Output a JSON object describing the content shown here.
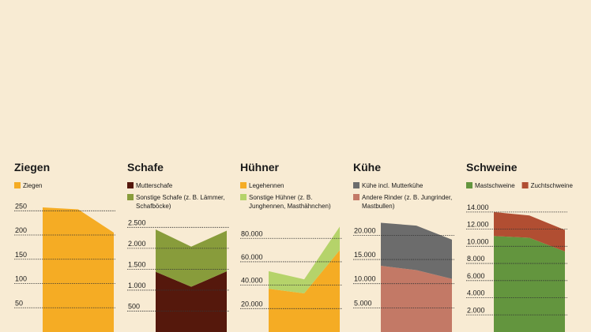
{
  "colors": {
    "background": "#f8ebd3",
    "ziegen": "#f5ac24",
    "mutterschafe": "#55180c",
    "sonstige_schafe": "#889c3b",
    "legehennen": "#f5ac24",
    "sonstige_huehner": "#b5d36a",
    "kuehe": "#6c6c6c",
    "andere_rinder": "#c37966",
    "mastschweine": "#63953e",
    "zuchtschweine": "#b14e32"
  },
  "chart_data": [
    {
      "type": "area",
      "title": "Ziegen",
      "ylim": [
        0,
        270
      ],
      "yticks": [
        50,
        100,
        150,
        200,
        250
      ],
      "ytick_labels": [
        "50",
        "100",
        "150",
        "200",
        "250"
      ],
      "x": [
        0,
        1,
        2
      ],
      "series": [
        {
          "name": "Ziegen",
          "color": "ziegen",
          "values": [
            257,
            253,
            205
          ]
        }
      ]
    },
    {
      "type": "area",
      "title": "Schafe",
      "ylim": [
        0,
        2600
      ],
      "yticks": [
        500,
        1000,
        1500,
        2000,
        2500
      ],
      "ytick_labels": [
        "500",
        "1.000",
        "1.500",
        "2.000",
        "2.500"
      ],
      "x": [
        0,
        1,
        2
      ],
      "series": [
        {
          "name": "Mutterschafe",
          "color": "mutterschafe",
          "values": [
            1440,
            1080,
            1450
          ]
        },
        {
          "name": "Sonstige Schafe (z. B. Lämmer, Schafböcke)",
          "color": "sonstige_schafe",
          "values": [
            1010,
            960,
            970
          ]
        }
      ]
    },
    {
      "type": "area",
      "title": "Hühner",
      "ylim": [
        0,
        95000
      ],
      "yticks": [
        20000,
        40000,
        60000,
        80000
      ],
      "ytick_labels": [
        "20.000",
        "40.000",
        "60.000",
        "80.000"
      ],
      "x": [
        0,
        1,
        2
      ],
      "series": [
        {
          "name": "Legehennen",
          "color": "legehennen",
          "values": [
            37000,
            33000,
            70000
          ]
        },
        {
          "name": "Sonstige Hühner (z. B. Junghennen, Masthähnchen)",
          "color": "sonstige_huehner",
          "values": [
            15000,
            12000,
            20000
          ]
        }
      ]
    },
    {
      "type": "area",
      "title": "Kühe",
      "ylim": [
        0,
        23000
      ],
      "yticks": [
        5000,
        10000,
        15000,
        20000
      ],
      "ytick_labels": [
        "5.000",
        "10.000",
        "15.000",
        "20.000"
      ],
      "x": [
        0,
        1,
        2
      ],
      "series": [
        {
          "name": "Andere Rinder (z. B. Jungrinder, Mastbullen)",
          "color": "andere_rinder",
          "values": [
            13700,
            12800,
            11000
          ]
        },
        {
          "name": "Kühe incl. Mutterkühe",
          "color": "kuehe",
          "values": [
            8900,
            9200,
            8100
          ]
        }
      ]
    },
    {
      "type": "area",
      "title": "Schweine",
      "ylim": [
        0,
        15000
      ],
      "yticks": [
        2000,
        4000,
        6000,
        8000,
        10000,
        12000,
        14000
      ],
      "ytick_labels": [
        "2.000",
        "4.000",
        "6.000",
        "8.000",
        "10.000",
        "12.000",
        "14.000"
      ],
      "x": [
        0,
        1,
        2
      ],
      "series": [
        {
          "name": "Mastschweine",
          "color": "mastschweine",
          "values": [
            11200,
            11000,
            9400
          ]
        },
        {
          "name": "Zuchtschweine",
          "color": "zuchtschweine",
          "values": [
            2800,
            2600,
            2500
          ]
        }
      ]
    }
  ]
}
